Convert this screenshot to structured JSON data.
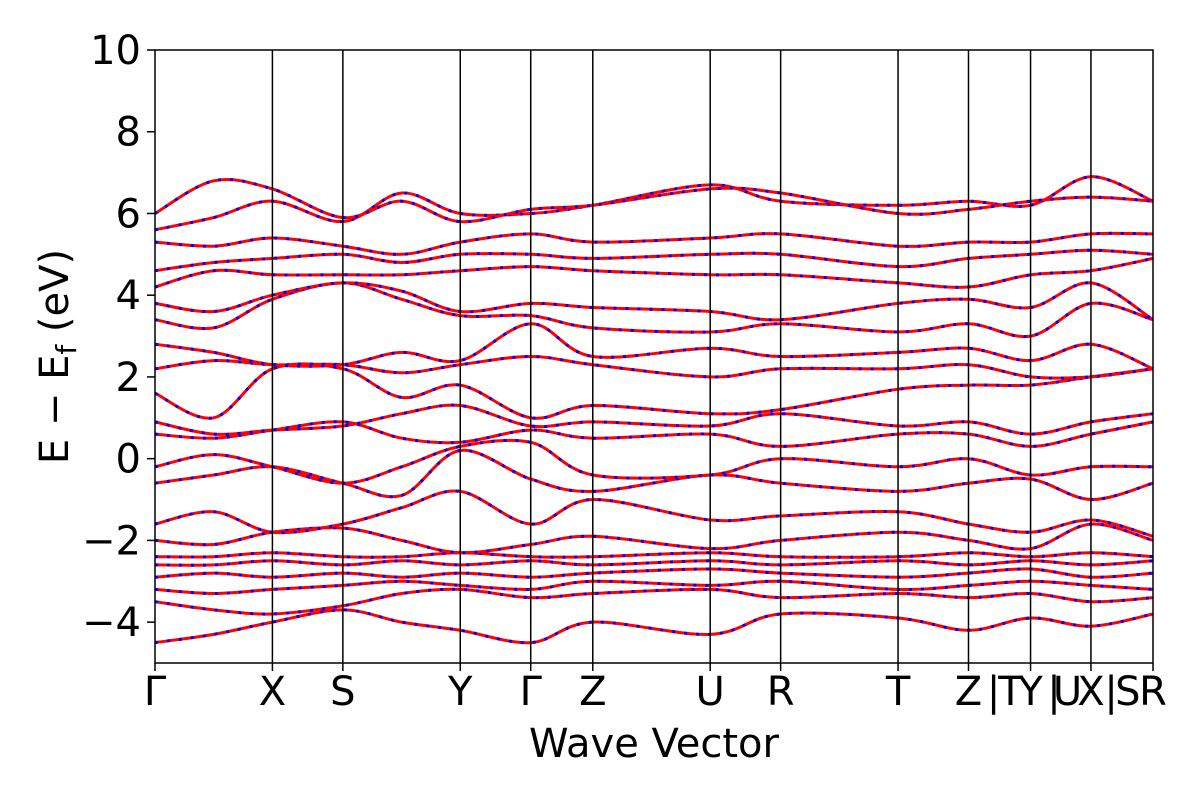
{
  "chart_data": {
    "type": "line",
    "title": "",
    "xlabel": "Wave Vector",
    "ylabel_main": "E − E",
    "ylabel_sub": "f",
    "ylabel_unit": " (eV)",
    "ylim": [
      -5,
      10
    ],
    "yticks": [
      -4,
      -2,
      0,
      2,
      4,
      6,
      8,
      10
    ],
    "ytick_labels": [
      "−4",
      "−2",
      "0",
      "2",
      "4",
      "6",
      "8",
      "10"
    ],
    "xlim": [
      0,
      5.95
    ],
    "kpoint_positions": [
      0,
      0.7,
      1.12,
      1.82,
      2.24,
      2.61,
      3.31,
      3.73,
      4.43,
      4.85,
      5.22,
      5.58,
      5.95
    ],
    "kpoint_labels": [
      "Γ",
      "X",
      "S",
      "Y",
      "Γ",
      "Z",
      "U",
      "R",
      "T",
      "Z",
      "Y",
      "X",
      "R"
    ],
    "segment_break_labels": [
      "|",
      "T",
      "|",
      "U",
      "|",
      "S"
    ],
    "legend": "none",
    "grid": false,
    "series": [
      {
        "color": "#ff0000",
        "style": "solid",
        "values": [
          {
            "x": [
              0,
              0.35,
              0.7,
              1.12,
              1.47,
              1.82,
              2.24,
              2.61,
              3.31,
              3.73,
              4.43,
              4.85,
              5.22,
              5.58,
              5.95
            ],
            "y": [
              -4.5,
              -4.3,
              -4.0,
              -3.7,
              -4.0,
              -4.2,
              -4.5,
              -4.0,
              -4.3,
              -3.8,
              -3.9,
              -4.2,
              -3.9,
              -4.1,
              -3.8
            ]
          },
          {
            "x": [
              0,
              0.35,
              0.7,
              1.12,
              1.47,
              1.82,
              2.24,
              2.61,
              3.31,
              3.73,
              4.43,
              4.85,
              5.22,
              5.58,
              5.95
            ],
            "y": [
              -3.5,
              -3.7,
              -3.8,
              -3.6,
              -3.3,
              -3.2,
              -3.4,
              -3.3,
              -3.2,
              -3.4,
              -3.3,
              -3.4,
              -3.3,
              -3.5,
              -3.4
            ]
          },
          {
            "x": [
              0,
              0.35,
              0.7,
              1.12,
              1.47,
              1.82,
              2.24,
              2.61,
              3.31,
              3.73,
              4.43,
              4.85,
              5.22,
              5.58,
              5.95
            ],
            "y": [
              -3.2,
              -3.3,
              -3.2,
              -3.1,
              -3.0,
              -3.1,
              -3.2,
              -3.0,
              -3.1,
              -3.0,
              -3.2,
              -3.1,
              -3.0,
              -3.1,
              -3.2
            ]
          },
          {
            "x": [
              0,
              0.35,
              0.7,
              1.12,
              1.47,
              1.82,
              2.24,
              2.61,
              3.31,
              3.73,
              4.43,
              4.85,
              5.22,
              5.58,
              5.95
            ],
            "y": [
              -2.9,
              -2.8,
              -2.9,
              -2.8,
              -2.9,
              -2.8,
              -2.9,
              -2.8,
              -2.7,
              -2.8,
              -2.9,
              -2.8,
              -2.7,
              -2.9,
              -2.8
            ]
          },
          {
            "x": [
              0,
              0.35,
              0.7,
              1.12,
              1.47,
              1.82,
              2.24,
              2.61,
              3.31,
              3.73,
              4.43,
              4.85,
              5.22,
              5.58,
              5.95
            ],
            "y": [
              -2.6,
              -2.6,
              -2.5,
              -2.6,
              -2.5,
              -2.6,
              -2.5,
              -2.6,
              -2.5,
              -2.6,
              -2.5,
              -2.6,
              -2.5,
              -2.6,
              -2.5
            ]
          },
          {
            "x": [
              0,
              0.35,
              0.7,
              1.12,
              1.47,
              1.82,
              2.24,
              2.61,
              3.31,
              3.73,
              4.43,
              4.85,
              5.22,
              5.58,
              5.95
            ],
            "y": [
              -2.4,
              -2.4,
              -2.3,
              -2.4,
              -2.4,
              -2.3,
              -2.4,
              -2.4,
              -2.3,
              -2.4,
              -2.4,
              -2.3,
              -2.4,
              -2.3,
              -2.4
            ]
          },
          {
            "x": [
              0,
              0.35,
              0.7,
              1.12,
              1.47,
              1.82,
              2.24,
              2.61,
              3.31,
              3.73,
              4.43,
              4.85,
              5.22,
              5.58,
              5.95
            ],
            "y": [
              -2.0,
              -2.1,
              -1.8,
              -1.7,
              -2.0,
              -2.3,
              -2.1,
              -1.9,
              -2.2,
              -2.0,
              -1.8,
              -2.0,
              -2.2,
              -1.6,
              -2.0
            ]
          },
          {
            "x": [
              0,
              0.35,
              0.7,
              1.12,
              1.47,
              1.82,
              2.24,
              2.61,
              3.31,
              3.73,
              4.43,
              4.85,
              5.22,
              5.58,
              5.95
            ],
            "y": [
              -1.6,
              -1.3,
              -1.8,
              -1.6,
              -1.2,
              -0.8,
              -1.6,
              -1.0,
              -1.5,
              -1.4,
              -1.3,
              -1.6,
              -1.8,
              -1.5,
              -1.9
            ]
          },
          {
            "x": [
              0,
              0.35,
              0.7,
              1.12,
              1.47,
              1.82,
              2.24,
              2.61,
              3.31,
              3.73,
              4.43,
              4.85,
              5.22,
              5.58,
              5.95
            ],
            "y": [
              -0.6,
              -0.4,
              -0.2,
              -0.6,
              -0.9,
              0.2,
              -0.5,
              -0.8,
              -0.4,
              -0.6,
              -0.8,
              -0.6,
              -0.5,
              -1.0,
              -0.6
            ]
          },
          {
            "x": [
              0,
              0.35,
              0.7,
              1.12,
              1.47,
              1.82,
              2.24,
              2.61,
              3.31,
              3.73,
              4.43,
              4.85,
              5.22,
              5.58,
              5.95
            ],
            "y": [
              -0.2,
              0.1,
              -0.2,
              -0.6,
              -0.2,
              0.3,
              0.4,
              -0.4,
              -0.4,
              0.0,
              -0.2,
              0.0,
              -0.4,
              -0.2,
              -0.2
            ]
          },
          {
            "x": [
              0,
              0.35,
              0.7,
              1.12,
              1.47,
              1.82,
              2.24,
              2.61,
              3.31,
              3.73,
              4.43,
              4.85,
              5.22,
              5.58,
              5.95
            ],
            "y": [
              0.6,
              0.5,
              0.7,
              0.9,
              0.5,
              0.4,
              0.7,
              0.5,
              0.6,
              0.3,
              0.6,
              0.6,
              0.3,
              0.6,
              0.9
            ]
          },
          {
            "x": [
              0,
              0.35,
              0.7,
              1.12,
              1.47,
              1.82,
              2.24,
              2.61,
              3.31,
              3.73,
              4.43,
              4.85,
              5.22,
              5.58,
              5.95
            ],
            "y": [
              0.9,
              0.6,
              0.7,
              0.8,
              1.1,
              1.3,
              0.8,
              0.9,
              0.8,
              1.1,
              0.8,
              0.9,
              0.6,
              0.9,
              1.1
            ]
          },
          {
            "x": [
              0,
              0.35,
              0.7,
              1.12,
              1.47,
              1.82,
              2.24,
              2.61,
              3.31,
              3.73,
              4.43,
              4.85,
              5.22,
              5.58,
              5.95
            ],
            "y": [
              1.6,
              1.0,
              2.2,
              2.2,
              1.5,
              1.8,
              1.0,
              1.3,
              1.1,
              1.2,
              1.7,
              1.8,
              1.8,
              2.0,
              2.2
            ]
          },
          {
            "x": [
              0,
              0.35,
              0.7,
              1.12,
              1.47,
              1.82,
              2.24,
              2.61,
              3.31,
              3.73,
              4.43,
              4.85,
              5.22,
              5.58,
              5.95
            ],
            "y": [
              2.2,
              2.4,
              2.3,
              2.3,
              2.1,
              2.3,
              2.5,
              2.3,
              2.0,
              2.2,
              2.2,
              2.3,
              2.0,
              2.0,
              2.2
            ]
          },
          {
            "x": [
              0,
              0.35,
              0.7,
              1.12,
              1.47,
              1.82,
              2.24,
              2.61,
              3.31,
              3.73,
              4.43,
              4.85,
              5.22,
              5.58,
              5.95
            ],
            "y": [
              2.8,
              2.6,
              2.3,
              2.3,
              2.6,
              2.4,
              3.3,
              2.5,
              2.7,
              2.5,
              2.6,
              2.7,
              2.4,
              2.8,
              2.2
            ]
          },
          {
            "x": [
              0,
              0.35,
              0.7,
              1.12,
              1.47,
              1.82,
              2.24,
              2.61,
              3.31,
              3.73,
              4.43,
              4.85,
              5.22,
              5.58,
              5.95
            ],
            "y": [
              3.4,
              3.2,
              3.9,
              4.3,
              3.9,
              3.5,
              3.5,
              3.2,
              3.1,
              3.3,
              3.1,
              3.3,
              3.0,
              3.8,
              3.4
            ]
          },
          {
            "x": [
              0,
              0.35,
              0.7,
              1.12,
              1.47,
              1.82,
              2.24,
              2.61,
              3.31,
              3.73,
              4.43,
              4.85,
              5.22,
              5.58,
              5.95
            ],
            "y": [
              3.8,
              3.6,
              4.0,
              4.3,
              4.1,
              3.6,
              3.8,
              3.7,
              3.6,
              3.4,
              3.8,
              3.9,
              3.7,
              4.3,
              3.4
            ]
          },
          {
            "x": [
              0,
              0.35,
              0.7,
              1.12,
              1.47,
              1.82,
              2.24,
              2.61,
              3.31,
              3.73,
              4.43,
              4.85,
              5.22,
              5.58,
              5.95
            ],
            "y": [
              4.2,
              4.6,
              4.5,
              4.5,
              4.5,
              4.6,
              4.7,
              4.6,
              4.5,
              4.5,
              4.3,
              4.2,
              4.5,
              4.6,
              4.9
            ]
          },
          {
            "x": [
              0,
              0.35,
              0.7,
              1.12,
              1.47,
              1.82,
              2.24,
              2.61,
              3.31,
              3.73,
              4.43,
              4.85,
              5.22,
              5.58,
              5.95
            ],
            "y": [
              4.6,
              4.8,
              4.9,
              5.0,
              4.8,
              5.0,
              5.0,
              4.9,
              5.0,
              5.0,
              4.7,
              4.9,
              5.0,
              5.1,
              5.0
            ]
          },
          {
            "x": [
              0,
              0.35,
              0.7,
              1.12,
              1.47,
              1.82,
              2.24,
              2.61,
              3.31,
              3.73,
              4.43,
              4.85,
              5.22,
              5.58,
              5.95
            ],
            "y": [
              5.3,
              5.2,
              5.4,
              5.2,
              5.0,
              5.3,
              5.5,
              5.3,
              5.4,
              5.5,
              5.2,
              5.3,
              5.3,
              5.5,
              5.5
            ]
          },
          {
            "x": [
              0,
              0.35,
              0.7,
              1.12,
              1.47,
              1.82,
              2.24,
              2.61,
              3.31,
              3.73,
              4.43,
              4.85,
              5.22,
              5.58,
              5.95
            ],
            "y": [
              5.6,
              5.9,
              6.3,
              5.8,
              6.5,
              6.0,
              6.0,
              6.2,
              6.7,
              6.3,
              6.2,
              6.3,
              6.2,
              6.9,
              6.3
            ]
          },
          {
            "x": [
              0,
              0.35,
              0.7,
              1.12,
              1.47,
              1.82,
              2.24,
              2.61,
              3.31,
              3.73,
              4.43,
              4.85,
              5.22,
              5.58,
              5.95
            ],
            "y": [
              6.0,
              6.8,
              6.6,
              5.9,
              6.3,
              5.8,
              6.1,
              6.2,
              6.6,
              6.5,
              6.0,
              6.1,
              6.3,
              6.4,
              6.3
            ]
          }
        ]
      },
      {
        "color": "#0000ff",
        "style": "dotted",
        "values": "same-as-red"
      }
    ]
  }
}
